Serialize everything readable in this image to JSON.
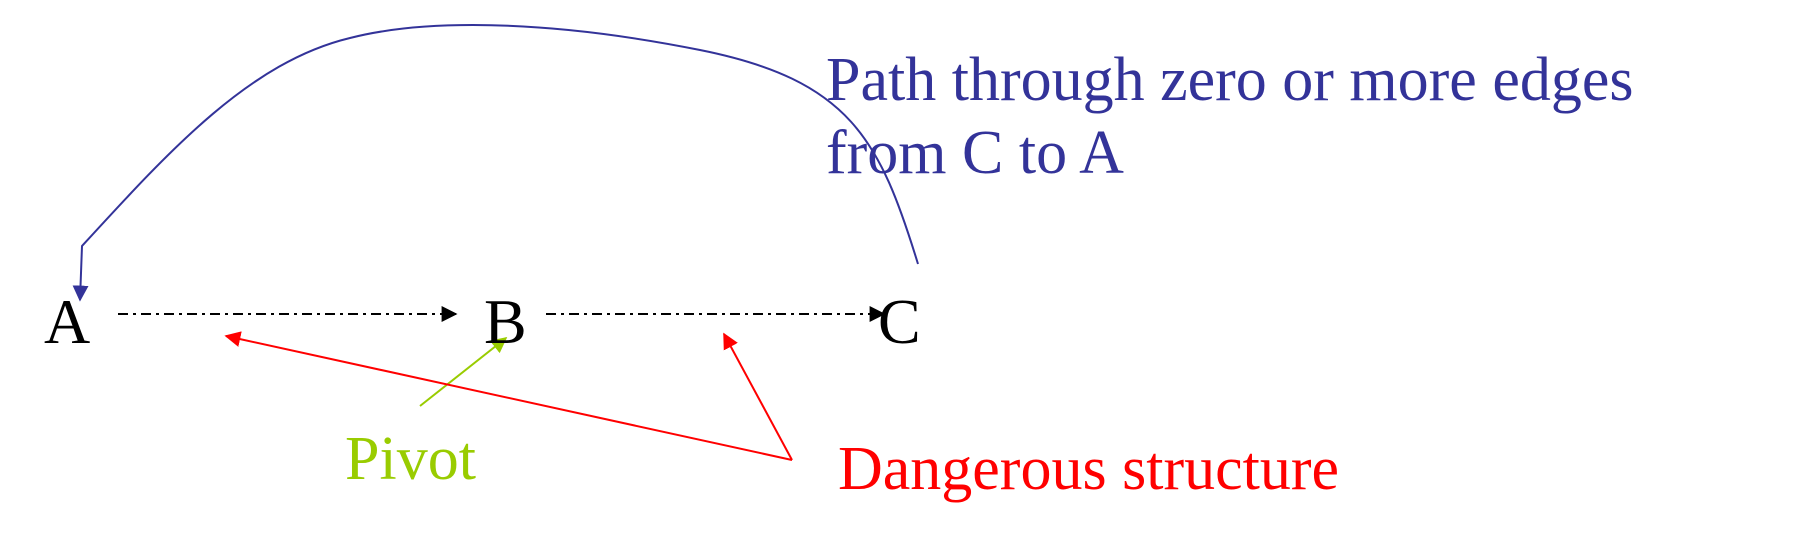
{
  "nodes": {
    "a": "A",
    "b": "B",
    "c": "C"
  },
  "annotations": {
    "path_note": "Path through zero or more edges\nfrom C to A",
    "pivot": "Pivot",
    "dangerous": "Dangerous structure"
  },
  "colors": {
    "node_text": "#000000",
    "path_curve": "#333399",
    "pivot": "#99cc00",
    "dangerous": "#ff0000",
    "dashed_edge": "#000000"
  }
}
